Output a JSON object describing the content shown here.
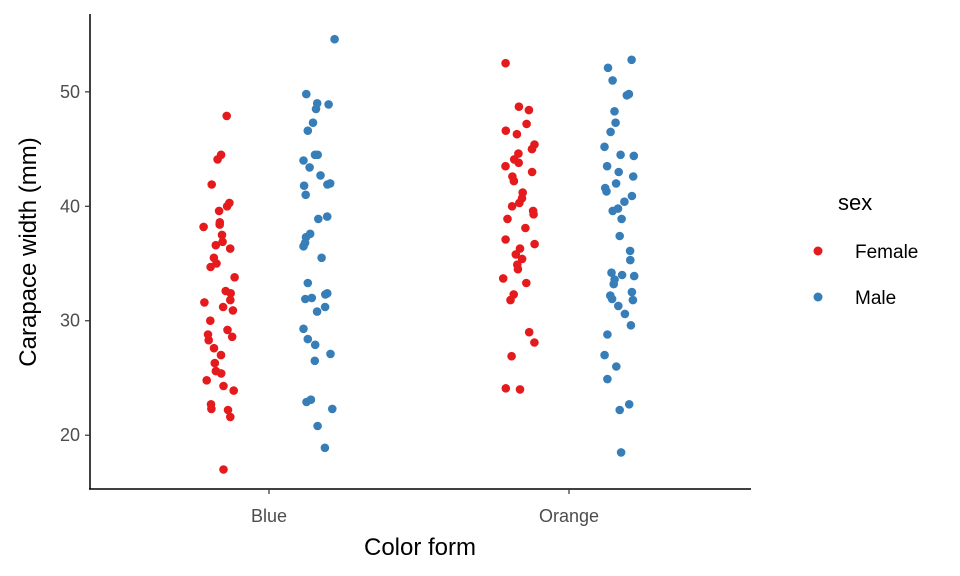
{
  "chart_data": {
    "type": "scatter",
    "title": "",
    "xlabel": "Color form",
    "ylabel": "Carapace width (mm)",
    "categories": [
      "Blue",
      "Orange"
    ],
    "ylim": [
      15.3,
      56.8
    ],
    "yticks": [
      20,
      30,
      40,
      50
    ],
    "grid": false,
    "legend": {
      "title": "sex",
      "placement": "right",
      "entries": [
        "Female",
        "Male"
      ]
    },
    "series": [
      {
        "name": "Female",
        "color": "#e41a1c",
        "points": [
          {
            "category": "Blue",
            "y": 47.9
          },
          {
            "category": "Blue",
            "y": 44.5
          },
          {
            "category": "Blue",
            "y": 44.1
          },
          {
            "category": "Blue",
            "y": 41.9
          },
          {
            "category": "Blue",
            "y": 40.3
          },
          {
            "category": "Blue",
            "y": 40.0
          },
          {
            "category": "Blue",
            "y": 39.6
          },
          {
            "category": "Blue",
            "y": 38.6
          },
          {
            "category": "Blue",
            "y": 38.4
          },
          {
            "category": "Blue",
            "y": 38.2
          },
          {
            "category": "Blue",
            "y": 37.5
          },
          {
            "category": "Blue",
            "y": 36.9
          },
          {
            "category": "Blue",
            "y": 36.6
          },
          {
            "category": "Blue",
            "y": 36.3
          },
          {
            "category": "Blue",
            "y": 35.5
          },
          {
            "category": "Blue",
            "y": 35.0
          },
          {
            "category": "Blue",
            "y": 34.7
          },
          {
            "category": "Blue",
            "y": 33.8
          },
          {
            "category": "Blue",
            "y": 32.6
          },
          {
            "category": "Blue",
            "y": 32.4
          },
          {
            "category": "Blue",
            "y": 31.8
          },
          {
            "category": "Blue",
            "y": 31.6
          },
          {
            "category": "Blue",
            "y": 31.2
          },
          {
            "category": "Blue",
            "y": 30.9
          },
          {
            "category": "Blue",
            "y": 30.0
          },
          {
            "category": "Blue",
            "y": 29.2
          },
          {
            "category": "Blue",
            "y": 28.8
          },
          {
            "category": "Blue",
            "y": 28.6
          },
          {
            "category": "Blue",
            "y": 28.3
          },
          {
            "category": "Blue",
            "y": 27.6
          },
          {
            "category": "Blue",
            "y": 27.0
          },
          {
            "category": "Blue",
            "y": 26.3
          },
          {
            "category": "Blue",
            "y": 25.6
          },
          {
            "category": "Blue",
            "y": 25.4
          },
          {
            "category": "Blue",
            "y": 24.8
          },
          {
            "category": "Blue",
            "y": 24.3
          },
          {
            "category": "Blue",
            "y": 23.9
          },
          {
            "category": "Blue",
            "y": 22.7
          },
          {
            "category": "Blue",
            "y": 22.3
          },
          {
            "category": "Blue",
            "y": 22.2
          },
          {
            "category": "Blue",
            "y": 21.6
          },
          {
            "category": "Blue",
            "y": 17.0
          },
          {
            "category": "Orange",
            "y": 52.5
          },
          {
            "category": "Orange",
            "y": 48.7
          },
          {
            "category": "Orange",
            "y": 48.4
          },
          {
            "category": "Orange",
            "y": 47.2
          },
          {
            "category": "Orange",
            "y": 46.6
          },
          {
            "category": "Orange",
            "y": 46.3
          },
          {
            "category": "Orange",
            "y": 45.4
          },
          {
            "category": "Orange",
            "y": 45.0
          },
          {
            "category": "Orange",
            "y": 44.6
          },
          {
            "category": "Orange",
            "y": 44.1
          },
          {
            "category": "Orange",
            "y": 43.8
          },
          {
            "category": "Orange",
            "y": 43.5
          },
          {
            "category": "Orange",
            "y": 43.0
          },
          {
            "category": "Orange",
            "y": 42.6
          },
          {
            "category": "Orange",
            "y": 42.2
          },
          {
            "category": "Orange",
            "y": 41.2
          },
          {
            "category": "Orange",
            "y": 40.7
          },
          {
            "category": "Orange",
            "y": 40.3
          },
          {
            "category": "Orange",
            "y": 40.0
          },
          {
            "category": "Orange",
            "y": 39.6
          },
          {
            "category": "Orange",
            "y": 39.3
          },
          {
            "category": "Orange",
            "y": 38.9
          },
          {
            "category": "Orange",
            "y": 38.1
          },
          {
            "category": "Orange",
            "y": 37.1
          },
          {
            "category": "Orange",
            "y": 36.7
          },
          {
            "category": "Orange",
            "y": 36.3
          },
          {
            "category": "Orange",
            "y": 35.8
          },
          {
            "category": "Orange",
            "y": 35.4
          },
          {
            "category": "Orange",
            "y": 34.9
          },
          {
            "category": "Orange",
            "y": 34.5
          },
          {
            "category": "Orange",
            "y": 33.7
          },
          {
            "category": "Orange",
            "y": 33.3
          },
          {
            "category": "Orange",
            "y": 32.3
          },
          {
            "category": "Orange",
            "y": 31.8
          },
          {
            "category": "Orange",
            "y": 29.0
          },
          {
            "category": "Orange",
            "y": 28.1
          },
          {
            "category": "Orange",
            "y": 26.9
          },
          {
            "category": "Orange",
            "y": 24.1
          },
          {
            "category": "Orange",
            "y": 24.0
          }
        ]
      },
      {
        "name": "Male",
        "color": "#377eb8",
        "points": [
          {
            "category": "Blue",
            "y": 54.6
          },
          {
            "category": "Blue",
            "y": 49.8
          },
          {
            "category": "Blue",
            "y": 49.0
          },
          {
            "category": "Blue",
            "y": 48.9
          },
          {
            "category": "Blue",
            "y": 48.5
          },
          {
            "category": "Blue",
            "y": 47.3
          },
          {
            "category": "Blue",
            "y": 46.6
          },
          {
            "category": "Blue",
            "y": 44.5
          },
          {
            "category": "Blue",
            "y": 44.5
          },
          {
            "category": "Blue",
            "y": 44.0
          },
          {
            "category": "Blue",
            "y": 43.4
          },
          {
            "category": "Blue",
            "y": 42.7
          },
          {
            "category": "Blue",
            "y": 42.0
          },
          {
            "category": "Blue",
            "y": 41.9
          },
          {
            "category": "Blue",
            "y": 41.8
          },
          {
            "category": "Blue",
            "y": 41.0
          },
          {
            "category": "Blue",
            "y": 39.1
          },
          {
            "category": "Blue",
            "y": 38.9
          },
          {
            "category": "Blue",
            "y": 37.6
          },
          {
            "category": "Blue",
            "y": 37.3
          },
          {
            "category": "Blue",
            "y": 36.8
          },
          {
            "category": "Blue",
            "y": 36.5
          },
          {
            "category": "Blue",
            "y": 35.5
          },
          {
            "category": "Blue",
            "y": 33.3
          },
          {
            "category": "Blue",
            "y": 32.4
          },
          {
            "category": "Blue",
            "y": 32.3
          },
          {
            "category": "Blue",
            "y": 32.0
          },
          {
            "category": "Blue",
            "y": 31.9
          },
          {
            "category": "Blue",
            "y": 31.2
          },
          {
            "category": "Blue",
            "y": 30.8
          },
          {
            "category": "Blue",
            "y": 29.3
          },
          {
            "category": "Blue",
            "y": 28.4
          },
          {
            "category": "Blue",
            "y": 27.9
          },
          {
            "category": "Blue",
            "y": 27.1
          },
          {
            "category": "Blue",
            "y": 26.5
          },
          {
            "category": "Blue",
            "y": 23.1
          },
          {
            "category": "Blue",
            "y": 22.9
          },
          {
            "category": "Blue",
            "y": 22.3
          },
          {
            "category": "Blue",
            "y": 20.8
          },
          {
            "category": "Blue",
            "y": 18.9
          },
          {
            "category": "Orange",
            "y": 52.8
          },
          {
            "category": "Orange",
            "y": 52.1
          },
          {
            "category": "Orange",
            "y": 51.0
          },
          {
            "category": "Orange",
            "y": 49.8
          },
          {
            "category": "Orange",
            "y": 49.7
          },
          {
            "category": "Orange",
            "y": 48.3
          },
          {
            "category": "Orange",
            "y": 47.3
          },
          {
            "category": "Orange",
            "y": 46.5
          },
          {
            "category": "Orange",
            "y": 45.2
          },
          {
            "category": "Orange",
            "y": 44.5
          },
          {
            "category": "Orange",
            "y": 44.4
          },
          {
            "category": "Orange",
            "y": 43.5
          },
          {
            "category": "Orange",
            "y": 43.0
          },
          {
            "category": "Orange",
            "y": 42.6
          },
          {
            "category": "Orange",
            "y": 42.0
          },
          {
            "category": "Orange",
            "y": 41.6
          },
          {
            "category": "Orange",
            "y": 41.3
          },
          {
            "category": "Orange",
            "y": 40.9
          },
          {
            "category": "Orange",
            "y": 40.4
          },
          {
            "category": "Orange",
            "y": 39.8
          },
          {
            "category": "Orange",
            "y": 39.6
          },
          {
            "category": "Orange",
            "y": 38.9
          },
          {
            "category": "Orange",
            "y": 37.4
          },
          {
            "category": "Orange",
            "y": 36.1
          },
          {
            "category": "Orange",
            "y": 35.3
          },
          {
            "category": "Orange",
            "y": 34.2
          },
          {
            "category": "Orange",
            "y": 34.0
          },
          {
            "category": "Orange",
            "y": 33.9
          },
          {
            "category": "Orange",
            "y": 33.6
          },
          {
            "category": "Orange",
            "y": 33.2
          },
          {
            "category": "Orange",
            "y": 32.5
          },
          {
            "category": "Orange",
            "y": 32.2
          },
          {
            "category": "Orange",
            "y": 31.9
          },
          {
            "category": "Orange",
            "y": 31.8
          },
          {
            "category": "Orange",
            "y": 31.3
          },
          {
            "category": "Orange",
            "y": 30.6
          },
          {
            "category": "Orange",
            "y": 29.6
          },
          {
            "category": "Orange",
            "y": 28.8
          },
          {
            "category": "Orange",
            "y": 27.0
          },
          {
            "category": "Orange",
            "y": 26.0
          },
          {
            "category": "Orange",
            "y": 24.9
          },
          {
            "category": "Orange",
            "y": 22.7
          },
          {
            "category": "Orange",
            "y": 22.2
          },
          {
            "category": "Orange",
            "y": 18.5
          }
        ]
      }
    ]
  }
}
